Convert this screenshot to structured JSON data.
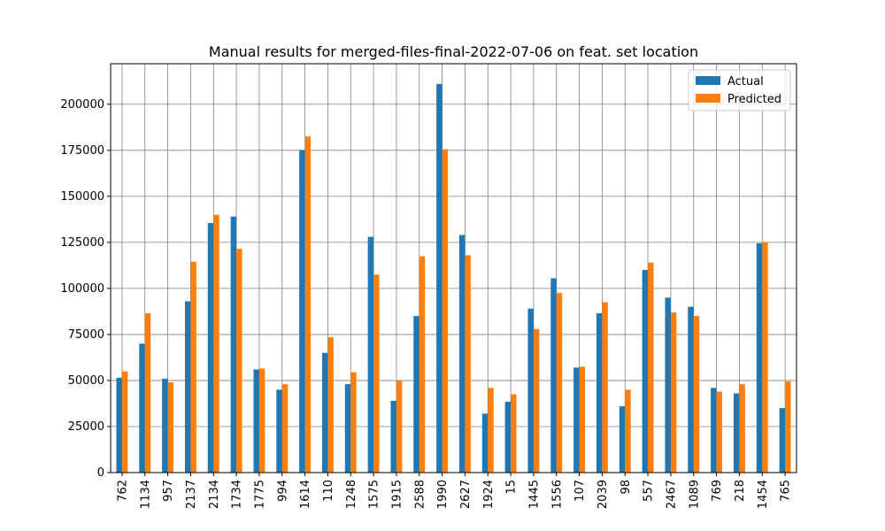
{
  "chart_data": {
    "type": "bar",
    "title": "Manual results for merged-files-final-2022-07-06 on feat. set location",
    "xlabel": "",
    "ylabel": "",
    "categories": [
      "762",
      "1134",
      "957",
      "2137",
      "2134",
      "1734",
      "1775",
      "994",
      "1614",
      "110",
      "1248",
      "1575",
      "1915",
      "2588",
      "1990",
      "2627",
      "1924",
      "15",
      "1445",
      "1556",
      "107",
      "2039",
      "98",
      "557",
      "2467",
      "1089",
      "769",
      "218",
      "1454",
      "765"
    ],
    "series": [
      {
        "name": "Actual",
        "color": "#1f77b4",
        "values": [
          51500,
          70000,
          51000,
          93000,
          135500,
          139000,
          56000,
          45000,
          175000,
          65000,
          48000,
          128000,
          39000,
          85000,
          211000,
          129000,
          32000,
          38500,
          89000,
          105500,
          57000,
          86500,
          36000,
          110000,
          95000,
          90000,
          46000,
          43000,
          124500,
          35000
        ]
      },
      {
        "name": "Predicted",
        "color": "#ff7f0e",
        "values": [
          55000,
          86500,
          49000,
          114500,
          140000,
          121500,
          56500,
          48000,
          182500,
          73500,
          54500,
          107500,
          50000,
          117500,
          175500,
          118000,
          46000,
          42500,
          78000,
          97500,
          57500,
          92500,
          45000,
          114000,
          87000,
          85000,
          44000,
          48000,
          125000,
          49500
        ]
      }
    ],
    "ylim": [
      0,
      222000
    ],
    "yticks": [
      0,
      25000,
      50000,
      75000,
      100000,
      125000,
      150000,
      175000,
      200000
    ],
    "ytick_labels": [
      "0",
      "25000",
      "50000",
      "75000",
      "100000",
      "125000",
      "150000",
      "175000",
      "200000"
    ],
    "grid": true,
    "legend_position": "top-right"
  }
}
